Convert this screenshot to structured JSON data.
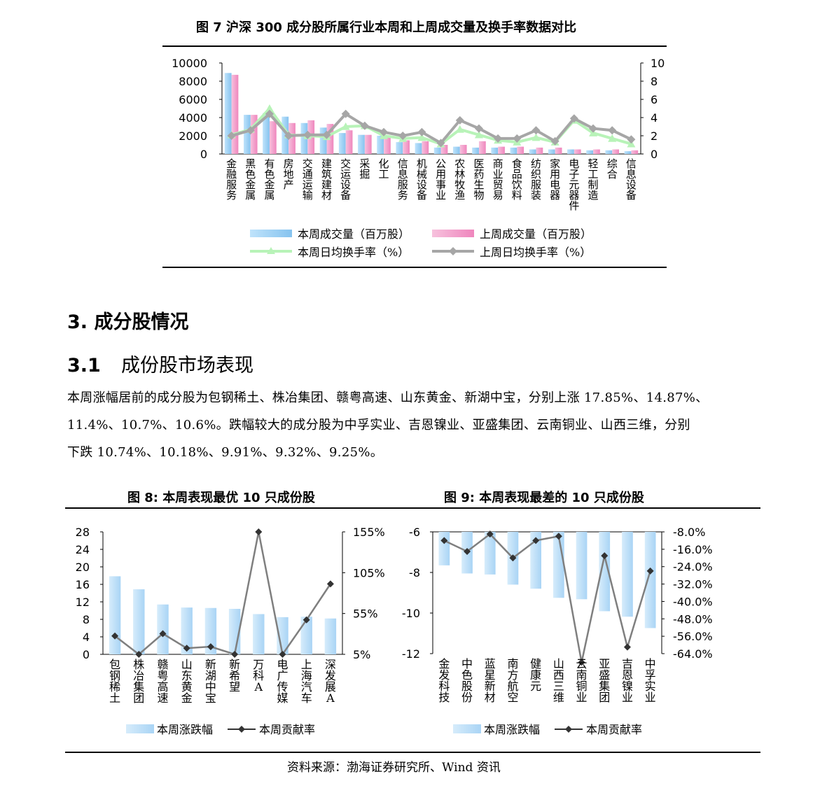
{
  "fig7": {
    "title": "图 7  沪深 300 成分股所属行业本周和上周成交量及换手率数据对比",
    "legend": {
      "bar1": "本周成交量（百万股）",
      "bar2": "上周成交量（百万股）",
      "line1": "本周日均换手率（%）",
      "line2": "上周日均换手率（%）"
    },
    "colors": {
      "bar1": "#9fd0f4",
      "bar2": "#f4a7cf",
      "line1": "#b8f3b8",
      "line2": "#a6a6a6"
    }
  },
  "section": {
    "heading3": "3.  成分股情况",
    "heading31_num": "3.1",
    "heading31_text": "成份股市场表现",
    "para_line1": "本周涨幅居前的成分股为包钢稀土、株冶集团、赣粤高速、山东黄金、新湖中宝，分别上涨 17.85%、14.87%、",
    "para_line2": "11.4%、10.7%、10.6%。跌幅较大的成分股为中孚实业、吉恩镍业、亚盛集团、云南铜业、山西三维，分别",
    "para_line3": "下跌 10.74%、10.18%、9.91%、9.32%、9.25%。"
  },
  "fig8": {
    "title": "图 8:  本周表现最优 10 只成份股",
    "legend": {
      "bar": "本周涨跌幅",
      "line": "本周贡献率"
    },
    "colors": {
      "bar": "#b9ddf7",
      "line": "#7f7f7f",
      "marker": "#333333"
    }
  },
  "fig9": {
    "title": "图 9:  本周表现最差的 10 只成份股",
    "legend": {
      "bar": "本周涨跌幅",
      "line": "本周贡献率"
    },
    "colors": {
      "bar": "#b9ddf7",
      "line": "#7f7f7f",
      "marker": "#333333"
    }
  },
  "source": "资料来源：渤海证券研究所、Wind 资讯",
  "chart_data": [
    {
      "type": "bar",
      "categories": [
        "金融服务",
        "黑色金属",
        "有色金属",
        "房地产",
        "交通运输",
        "建筑建材",
        "交运设备",
        "采掘",
        "化工",
        "信息服务",
        "机械设备",
        "公用事业",
        "农林牧渔",
        "医药生物",
        "商业贸易",
        "食品饮料",
        "纺织服装",
        "家用电器",
        "电子元器件",
        "轻工制造",
        "综合",
        "信息设备"
      ],
      "series": [
        {
          "name": "本周成交量（百万股）",
          "axis": "left",
          "kind": "bar",
          "values": [
            8900,
            4300,
            4500,
            4100,
            3400,
            2900,
            2300,
            2100,
            2000,
            1300,
            1200,
            700,
            800,
            700,
            700,
            700,
            500,
            500,
            500,
            400,
            400,
            300
          ]
        },
        {
          "name": "上周成交量（百万股）",
          "axis": "left",
          "kind": "bar",
          "values": [
            8700,
            4300,
            3600,
            3400,
            3700,
            3300,
            2600,
            2100,
            1900,
            1500,
            1400,
            1000,
            1000,
            1400,
            800,
            800,
            700,
            700,
            500,
            500,
            500,
            400
          ]
        },
        {
          "name": "本周日均换手率（%）",
          "axis": "right",
          "kind": "line",
          "values": [
            2.1,
            2.7,
            5.0,
            2.1,
            2.0,
            1.9,
            3.0,
            3.1,
            2.0,
            1.7,
            1.8,
            1.1,
            2.7,
            2.1,
            1.5,
            1.3,
            1.8,
            1.3,
            3.7,
            2.3,
            1.7,
            1.1
          ]
        },
        {
          "name": "上周日均换手率（%）",
          "axis": "right",
          "kind": "line",
          "values": [
            2.0,
            2.6,
            4.4,
            2.0,
            2.1,
            2.1,
            4.4,
            3.1,
            2.4,
            2.0,
            2.4,
            1.2,
            3.7,
            2.8,
            1.7,
            1.7,
            2.6,
            1.4,
            3.9,
            2.8,
            2.6,
            1.6
          ]
        }
      ],
      "ylim_left": [
        0,
        10000
      ],
      "yticks_left": [
        "0",
        "2000",
        "4000",
        "6000",
        "8000",
        "10000"
      ],
      "ylim_right": [
        0,
        10
      ],
      "yticks_right": [
        "0",
        "2",
        "4",
        "6",
        "8",
        "10"
      ],
      "legend": "bottom"
    },
    {
      "type": "bar",
      "categories": [
        "包钢稀土",
        "株冶集团",
        "赣粤高速",
        "山东黄金",
        "新湖中宝",
        "新希望",
        "万科A",
        "电广传媒",
        "上海汽车",
        "深发展A"
      ],
      "series": [
        {
          "name": "本周涨跌幅",
          "axis": "left",
          "kind": "bar",
          "values": [
            17.85,
            14.87,
            11.4,
            10.7,
            10.6,
            10.4,
            9.2,
            8.5,
            8.6,
            8.2
          ]
        },
        {
          "name": "本周贡献率",
          "axis": "right",
          "kind": "line",
          "values": [
            29,
            5,
            32,
            13,
            15,
            5,
            165,
            5,
            50,
            97
          ]
        }
      ],
      "ylim_left": [
        0,
        28
      ],
      "yticks_left": [
        "0",
        "4",
        "8",
        "12",
        "16",
        "20",
        "24",
        "28"
      ],
      "ylim_right": [
        5,
        165
      ],
      "yticks_right": [
        "5%",
        "55%",
        "105%",
        "155%"
      ],
      "legend": "bottom"
    },
    {
      "type": "bar",
      "categories": [
        "金发科技",
        "中色股份",
        "蓝星新材",
        "南方航空",
        "健康元",
        "山西三维",
        "云南铜业",
        "亚盛集团",
        "吉恩镍业",
        "中孚实业"
      ],
      "series": [
        {
          "name": "本周涨跌幅",
          "axis": "left",
          "kind": "bar",
          "values": [
            -7.65,
            -8.05,
            -8.1,
            -8.6,
            -8.8,
            -9.25,
            -9.32,
            -9.91,
            -10.18,
            -10.74
          ]
        },
        {
          "name": "本周贡献率",
          "axis": "right",
          "kind": "line",
          "values": [
            -12,
            -17,
            -9,
            -20,
            -12,
            -10,
            -68,
            -19,
            -61,
            -26
          ]
        }
      ],
      "ylim_left": [
        -12,
        -6
      ],
      "yticks_left": [
        "-12",
        "-10",
        "-8",
        "-6"
      ],
      "ylim_right": [
        -64,
        -8
      ],
      "yticks_right": [
        "-64.0%",
        "-56.0%",
        "-48.0%",
        "-40.0%",
        "-32.0%",
        "-24.0%",
        "-16.0%",
        "-8.0%"
      ],
      "legend": "bottom"
    }
  ]
}
